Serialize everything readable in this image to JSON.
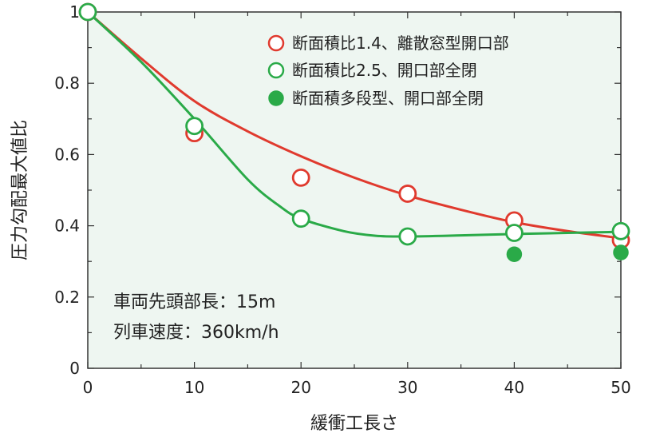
{
  "chart_data": {
    "type": "scatter",
    "xlabel": "緩衝工長さ",
    "ylabel": "圧力勾配最大値比",
    "xlim": [
      0,
      50
    ],
    "ylim": [
      0,
      1.0
    ],
    "x_ticks": [
      "0",
      "10",
      "20",
      "30",
      "40",
      "50"
    ],
    "y_ticks": [
      "0",
      "0.2",
      "0.4",
      "0.6",
      "0.8",
      "1"
    ],
    "grid": false,
    "background": "#eef6f1",
    "legend_position": "top-right",
    "series": [
      {
        "name": "断面積比1.4、離散窓型開口部",
        "marker": "open-circle",
        "color": "#e03a2e",
        "x": [
          0,
          10,
          20,
          30,
          40,
          50
        ],
        "y": [
          1.0,
          0.66,
          0.535,
          0.49,
          0.415,
          0.36
        ],
        "fit_curve": [
          [
            0,
            1.0
          ],
          [
            5,
            0.87
          ],
          [
            10,
            0.75
          ],
          [
            15,
            0.665
          ],
          [
            20,
            0.595
          ],
          [
            25,
            0.535
          ],
          [
            30,
            0.485
          ],
          [
            35,
            0.445
          ],
          [
            40,
            0.41
          ],
          [
            45,
            0.385
          ],
          [
            50,
            0.365
          ]
        ]
      },
      {
        "name": "断面積比2.5、開口部全閉",
        "marker": "open-circle",
        "color": "#2aaa48",
        "x": [
          0,
          10,
          20,
          30,
          40,
          50
        ],
        "y": [
          1.0,
          0.68,
          0.42,
          0.37,
          0.38,
          0.385
        ],
        "fit_curve": [
          [
            0,
            1.0
          ],
          [
            5,
            0.86
          ],
          [
            10,
            0.7
          ],
          [
            15,
            0.53
          ],
          [
            18,
            0.455
          ],
          [
            20,
            0.42
          ],
          [
            24,
            0.385
          ],
          [
            27,
            0.372
          ],
          [
            30,
            0.37
          ],
          [
            35,
            0.373
          ],
          [
            40,
            0.377
          ],
          [
            45,
            0.38
          ],
          [
            50,
            0.383
          ]
        ]
      },
      {
        "name": "断面積多段型、開口部全閉",
        "marker": "filled-circle",
        "color": "#2aaa48",
        "x": [
          40,
          50
        ],
        "y": [
          0.32,
          0.325
        ]
      }
    ],
    "annotations": [
      "車両先頭部長：15m",
      "列車速度：360km/h"
    ]
  }
}
